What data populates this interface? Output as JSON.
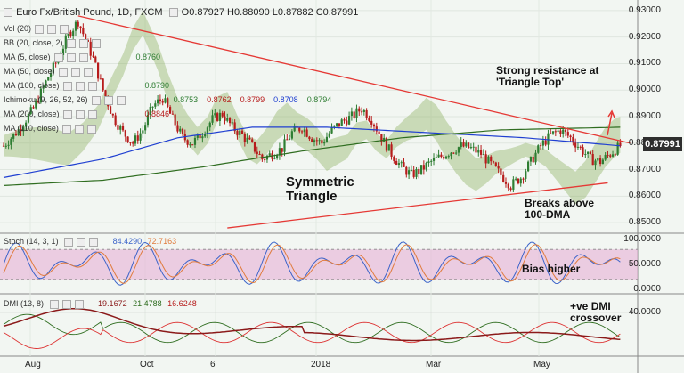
{
  "header": {
    "symbol": "Euro Fx/British Pound, 1D, FXCM",
    "ohlc": "O0.87927 H0.88090 L0.87882 C0.87991"
  },
  "indicators": [
    {
      "label": "Vol (20)",
      "values": []
    },
    {
      "label": "BB (20, close, 2)",
      "values": []
    },
    {
      "label": "MA (5, close)",
      "values": [
        "0.8760"
      ]
    },
    {
      "label": "MA (50, close)",
      "values": []
    },
    {
      "label": "MA (100, close)",
      "values": [
        "0.8790"
      ]
    },
    {
      "label": "Ichimoku (9, 26, 52, 26)",
      "values": [
        "0.8753",
        "0.8762",
        "0.8799",
        "0.8708",
        "0.8794"
      ]
    },
    {
      "label": "MA (200, close)",
      "values": [
        "0.8846"
      ]
    },
    {
      "label": "MA (110, close)",
      "values": []
    }
  ],
  "price_tag": "0.87991",
  "annotations": {
    "resistance_line1": "Strong resistance at",
    "resistance_line2": "'Triangle Top'",
    "triangle_line1": "Symmetric",
    "triangle_line2": "Triangle",
    "breaks_line1": "Breaks above",
    "breaks_line2": "100-DMA",
    "bias": "Bias higher",
    "dmi_line1": "+ve DMI",
    "dmi_line2": "crossover"
  },
  "stoch": {
    "label": "Stoch (14, 3, 1)",
    "k": "84.4290",
    "d": "72.7163"
  },
  "dmi": {
    "label": "DMI (13, 8)",
    "v1": "19.1672",
    "v2": "21.4788",
    "v3": "16.6248"
  },
  "colors": {
    "candle_up": "#2e7d32",
    "candle_down": "#b71c1c",
    "ma100": "#1f3fd1",
    "ma200": "#2f6d20",
    "trend": "#e53935",
    "cloud": "#7fa74a",
    "stoch_band": "#e6b0d6"
  },
  "chart_data": {
    "type": "candlestick",
    "y_axis": {
      "ticks": [
        "0.93000",
        "0.92000",
        "0.91000",
        "0.90000",
        "0.89000",
        "0.88000",
        "0.87000",
        "0.86000",
        "0.85000"
      ],
      "range": [
        0.846,
        0.934
      ]
    },
    "x_axis": {
      "ticks": [
        "Aug",
        "Oct",
        "6",
        "2018",
        "Mar",
        "May"
      ]
    },
    "stoch_axis": {
      "ticks": [
        "100.0000",
        "50.0000",
        "0.0000"
      ],
      "range": [
        0,
        100
      ]
    },
    "dmi_axis": {
      "ticks": [
        "40.0000"
      ]
    },
    "close_path": [
      [
        0,
        0.879
      ],
      [
        6,
        0.885
      ],
      [
        12,
        0.893
      ],
      [
        18,
        0.905
      ],
      [
        22,
        0.912
      ],
      [
        26,
        0.921
      ],
      [
        30,
        0.926
      ],
      [
        33,
        0.919
      ],
      [
        36,
        0.912
      ],
      [
        40,
        0.9
      ],
      [
        44,
        0.89
      ],
      [
        48,
        0.884
      ],
      [
        52,
        0.88
      ],
      [
        56,
        0.885
      ],
      [
        60,
        0.894
      ],
      [
        64,
        0.897
      ],
      [
        68,
        0.889
      ],
      [
        72,
        0.882
      ],
      [
        76,
        0.88
      ],
      [
        80,
        0.884
      ],
      [
        84,
        0.889
      ],
      [
        88,
        0.891
      ],
      [
        92,
        0.886
      ],
      [
        96,
        0.883
      ],
      [
        100,
        0.879
      ],
      [
        104,
        0.874
      ],
      [
        108,
        0.876
      ],
      [
        112,
        0.878
      ],
      [
        116,
        0.884
      ],
      [
        120,
        0.886
      ],
      [
        124,
        0.882
      ],
      [
        128,
        0.88
      ],
      [
        132,
        0.885
      ],
      [
        136,
        0.888
      ],
      [
        140,
        0.89
      ],
      [
        144,
        0.893
      ],
      [
        148,
        0.889
      ],
      [
        152,
        0.882
      ],
      [
        156,
        0.876
      ],
      [
        160,
        0.871
      ],
      [
        164,
        0.868
      ],
      [
        168,
        0.87
      ],
      [
        172,
        0.873
      ],
      [
        176,
        0.875
      ],
      [
        180,
        0.877
      ],
      [
        184,
        0.879
      ],
      [
        188,
        0.878
      ],
      [
        192,
        0.876
      ],
      [
        196,
        0.872
      ],
      [
        200,
        0.868
      ],
      [
        204,
        0.864
      ],
      [
        208,
        0.867
      ],
      [
        212,
        0.873
      ],
      [
        216,
        0.879
      ],
      [
        220,
        0.883
      ],
      [
        224,
        0.885
      ],
      [
        228,
        0.882
      ],
      [
        232,
        0.878
      ],
      [
        236,
        0.874
      ],
      [
        240,
        0.873
      ],
      [
        244,
        0.876
      ],
      [
        248,
        0.879
      ]
    ],
    "ma100": [
      [
        0,
        0.867
      ],
      [
        40,
        0.874
      ],
      [
        70,
        0.882
      ],
      [
        100,
        0.886
      ],
      [
        130,
        0.886
      ],
      [
        170,
        0.884
      ],
      [
        210,
        0.882
      ],
      [
        248,
        0.879
      ]
    ],
    "ma200": [
      [
        0,
        0.864
      ],
      [
        40,
        0.866
      ],
      [
        80,
        0.871
      ],
      [
        120,
        0.877
      ],
      [
        160,
        0.882
      ],
      [
        200,
        0.885
      ],
      [
        248,
        0.886
      ]
    ],
    "triangle_top": [
      [
        30,
        0.928
      ],
      [
        252,
        0.88
      ]
    ],
    "triangle_bottom": [
      [
        90,
        0.848
      ],
      [
        243,
        0.865
      ]
    ]
  }
}
